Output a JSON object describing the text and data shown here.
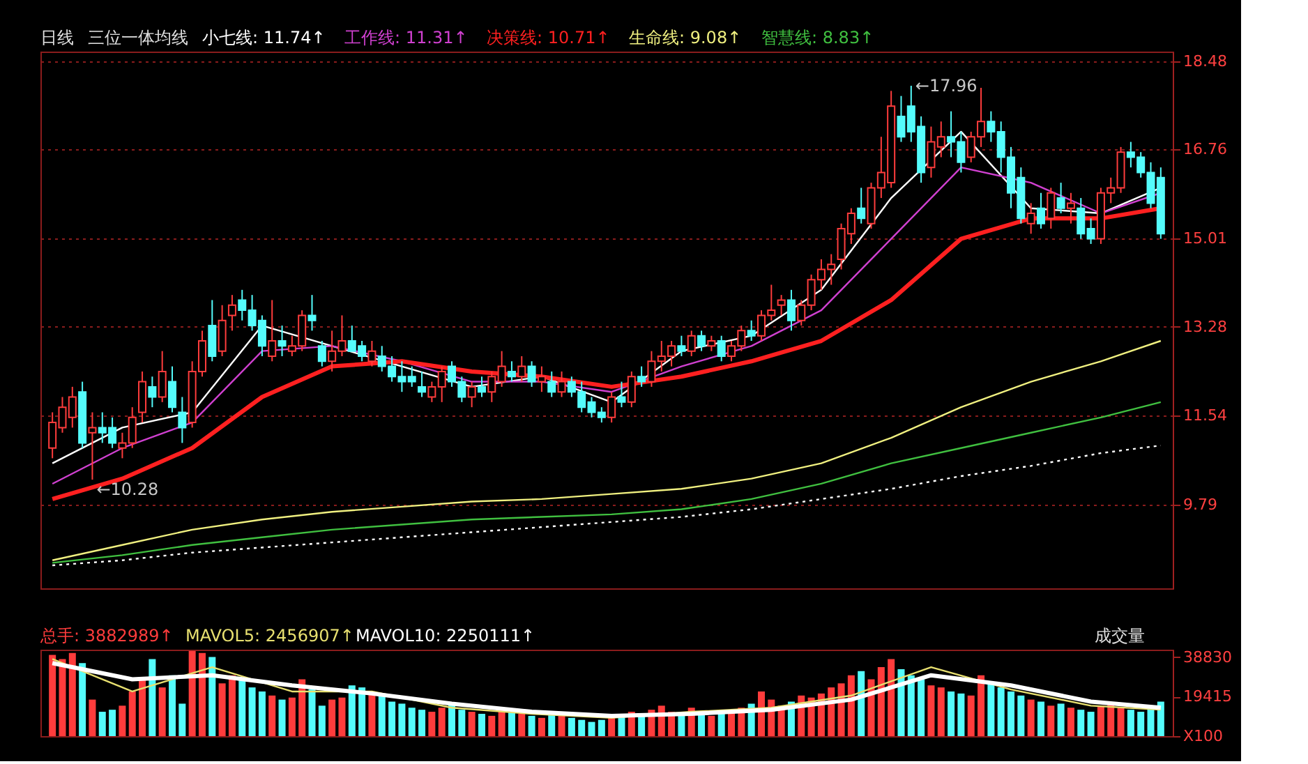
{
  "chart_data": [
    {
      "type": "candlestick",
      "title": "日线",
      "subtitle": "三位一体均线",
      "categories": [
        null,
        null,
        null,
        null,
        null,
        null,
        null,
        null,
        null,
        null,
        null,
        null,
        null,
        null,
        null,
        null,
        null,
        null,
        null,
        null,
        null,
        null,
        null,
        null,
        null,
        null,
        null,
        null,
        null,
        null,
        null,
        null,
        null,
        null,
        null,
        null,
        null,
        null,
        null,
        null,
        null,
        null,
        null,
        null,
        null,
        null,
        null,
        null,
        null,
        null,
        null,
        null,
        null,
        null,
        null,
        null,
        null,
        null,
        null,
        null,
        null,
        null,
        null,
        null,
        null,
        null,
        null,
        null,
        null,
        null,
        null,
        null,
        null,
        null,
        null,
        null,
        null,
        null,
        null,
        null,
        null,
        null,
        null,
        null,
        null,
        null,
        null,
        null,
        null,
        null,
        null,
        null,
        null,
        null,
        null,
        null,
        null,
        null,
        null,
        null,
        null,
        null,
        null,
        null,
        null,
        null,
        null,
        null,
        null,
        null,
        null,
        null
      ],
      "ohlc": [
        [
          10.9,
          11.6,
          10.7,
          11.4
        ],
        [
          11.3,
          11.9,
          11.2,
          11.7
        ],
        [
          11.5,
          12.1,
          11.3,
          11.9
        ],
        [
          12.0,
          12.2,
          10.9,
          11.0
        ],
        [
          11.2,
          11.6,
          10.28,
          11.3
        ],
        [
          11.3,
          11.6,
          11.0,
          11.2
        ],
        [
          11.3,
          11.5,
          10.9,
          11.0
        ],
        [
          10.9,
          11.2,
          10.7,
          11.0
        ],
        [
          11.0,
          11.7,
          10.9,
          11.5
        ],
        [
          11.6,
          12.4,
          11.4,
          12.2
        ],
        [
          12.1,
          12.3,
          11.7,
          11.9
        ],
        [
          11.9,
          12.8,
          11.8,
          12.4
        ],
        [
          12.2,
          12.5,
          11.6,
          11.7
        ],
        [
          11.6,
          11.9,
          11.0,
          11.3
        ],
        [
          11.4,
          12.6,
          11.3,
          12.4
        ],
        [
          12.4,
          13.2,
          12.3,
          13.0
        ],
        [
          13.3,
          13.8,
          12.6,
          12.7
        ],
        [
          12.8,
          13.7,
          12.7,
          13.4
        ],
        [
          13.5,
          13.9,
          13.2,
          13.7
        ],
        [
          13.8,
          14.0,
          13.4,
          13.6
        ],
        [
          13.6,
          13.9,
          13.2,
          13.3
        ],
        [
          13.4,
          13.5,
          12.7,
          12.9
        ],
        [
          12.7,
          13.8,
          12.6,
          13.0
        ],
        [
          13.0,
          13.3,
          12.7,
          12.9
        ],
        [
          12.8,
          13.1,
          12.7,
          12.9
        ],
        [
          12.9,
          13.6,
          12.8,
          13.5
        ],
        [
          13.5,
          13.9,
          13.2,
          13.4
        ],
        [
          12.9,
          13.0,
          12.5,
          12.6
        ],
        [
          12.6,
          13.2,
          12.4,
          12.8
        ],
        [
          12.8,
          13.5,
          12.7,
          13.0
        ],
        [
          13.0,
          13.3,
          12.8,
          12.8
        ],
        [
          12.9,
          13.0,
          12.6,
          12.7
        ],
        [
          12.6,
          13.0,
          12.5,
          12.8
        ],
        [
          12.7,
          12.9,
          12.4,
          12.5
        ],
        [
          12.5,
          12.7,
          12.2,
          12.3
        ],
        [
          12.3,
          12.6,
          12.0,
          12.2
        ],
        [
          12.3,
          12.5,
          12.1,
          12.2
        ],
        [
          12.1,
          12.4,
          11.9,
          12.0
        ],
        [
          11.9,
          12.2,
          11.8,
          12.1
        ],
        [
          12.1,
          12.5,
          11.8,
          12.4
        ],
        [
          12.5,
          12.6,
          12.1,
          12.2
        ],
        [
          12.2,
          12.3,
          11.8,
          11.9
        ],
        [
          11.9,
          12.2,
          11.7,
          12.1
        ],
        [
          12.1,
          12.3,
          11.9,
          12.0
        ],
        [
          12.0,
          12.4,
          11.8,
          12.3
        ],
        [
          12.2,
          12.8,
          12.1,
          12.5
        ],
        [
          12.4,
          12.6,
          12.2,
          12.3
        ],
        [
          12.3,
          12.7,
          12.2,
          12.5
        ],
        [
          12.5,
          12.6,
          12.1,
          12.2
        ],
        [
          12.2,
          12.5,
          12.0,
          12.3
        ],
        [
          12.2,
          12.4,
          11.9,
          12.0
        ],
        [
          12.0,
          12.4,
          11.9,
          12.2
        ],
        [
          12.2,
          12.3,
          11.9,
          12.0
        ],
        [
          12.0,
          12.2,
          11.6,
          11.7
        ],
        [
          11.8,
          11.9,
          11.5,
          11.6
        ],
        [
          11.6,
          11.7,
          11.4,
          11.5
        ],
        [
          11.5,
          12.0,
          11.4,
          11.9
        ],
        [
          11.9,
          12.2,
          11.7,
          11.8
        ],
        [
          11.8,
          12.4,
          11.7,
          12.3
        ],
        [
          12.3,
          12.5,
          12.1,
          12.2
        ],
        [
          12.2,
          12.8,
          12.1,
          12.6
        ],
        [
          12.6,
          13.0,
          12.4,
          12.7
        ],
        [
          12.7,
          13.0,
          12.5,
          12.9
        ],
        [
          12.9,
          13.1,
          12.7,
          12.8
        ],
        [
          12.8,
          13.2,
          12.7,
          13.1
        ],
        [
          13.1,
          13.2,
          12.8,
          12.9
        ],
        [
          12.9,
          13.1,
          12.8,
          13.0
        ],
        [
          13.0,
          13.1,
          12.6,
          12.7
        ],
        [
          12.7,
          13.0,
          12.6,
          12.9
        ],
        [
          12.9,
          13.3,
          12.8,
          13.2
        ],
        [
          13.2,
          13.4,
          13.0,
          13.1
        ],
        [
          13.1,
          13.6,
          13.0,
          13.5
        ],
        [
          13.5,
          14.1,
          13.4,
          13.6
        ],
        [
          13.7,
          13.9,
          13.5,
          13.8
        ],
        [
          13.8,
          14.0,
          13.2,
          13.4
        ],
        [
          13.4,
          13.8,
          13.3,
          13.7
        ],
        [
          13.7,
          14.3,
          13.6,
          14.2
        ],
        [
          14.2,
          14.6,
          14.0,
          14.4
        ],
        [
          14.4,
          14.7,
          14.1,
          14.5
        ],
        [
          14.6,
          15.3,
          14.4,
          15.2
        ],
        [
          15.1,
          15.6,
          14.9,
          15.5
        ],
        [
          15.6,
          16.0,
          15.3,
          15.4
        ],
        [
          15.3,
          16.1,
          15.2,
          16.0
        ],
        [
          16.0,
          17.0,
          15.8,
          16.3
        ],
        [
          16.1,
          17.9,
          16.0,
          17.6
        ],
        [
          17.4,
          17.8,
          16.9,
          17.0
        ],
        [
          17.6,
          18.0,
          16.9,
          17.1
        ],
        [
          17.2,
          17.4,
          16.1,
          16.3
        ],
        [
          16.4,
          17.2,
          16.2,
          16.9
        ],
        [
          16.8,
          17.3,
          16.6,
          17.0
        ],
        [
          17.0,
          17.5,
          16.6,
          16.9
        ],
        [
          16.9,
          17.1,
          16.3,
          16.5
        ],
        [
          16.6,
          17.1,
          16.5,
          17.0
        ],
        [
          17.0,
          17.96,
          16.8,
          17.3
        ],
        [
          17.3,
          17.5,
          16.9,
          17.1
        ],
        [
          17.1,
          17.3,
          16.3,
          16.6
        ],
        [
          16.6,
          16.8,
          15.6,
          15.9
        ],
        [
          16.2,
          16.4,
          15.3,
          15.4
        ],
        [
          15.3,
          15.7,
          15.1,
          15.5
        ],
        [
          15.6,
          15.9,
          15.2,
          15.3
        ],
        [
          15.4,
          16.0,
          15.2,
          15.9
        ],
        [
          15.8,
          16.1,
          15.5,
          15.6
        ],
        [
          15.6,
          15.9,
          15.3,
          15.7
        ],
        [
          15.6,
          15.8,
          15.0,
          15.1
        ],
        [
          15.2,
          15.4,
          14.9,
          15.0
        ],
        [
          15.0,
          16.0,
          14.9,
          15.9
        ],
        [
          15.9,
          16.2,
          15.7,
          16.0
        ],
        [
          16.0,
          16.8,
          15.9,
          16.7
        ],
        [
          16.7,
          16.9,
          16.4,
          16.6
        ],
        [
          16.6,
          16.7,
          16.2,
          16.3
        ],
        [
          16.3,
          16.5,
          15.6,
          15.7
        ],
        [
          16.2,
          16.4,
          15.0,
          15.1
        ]
      ],
      "colors": [
        "#ff3c3c",
        "#ff3c3c",
        "#ff3c3c",
        "#54fcfc",
        "#ff3c3c",
        "#54fcfc",
        "#54fcfc",
        "#ff3c3c",
        "#ff3c3c",
        "#ff3c3c",
        "#54fcfc",
        "#ff3c3c",
        "#54fcfc",
        "#54fcfc",
        "#ff3c3c",
        "#ff3c3c",
        "#54fcfc",
        "#ff3c3c",
        "#ff3c3c",
        "#54fcfc",
        "#54fcfc",
        "#54fcfc",
        "#ff3c3c",
        "#54fcfc",
        "#ff3c3c",
        "#ff3c3c",
        "#54fcfc",
        "#54fcfc",
        "#ff3c3c",
        "#ff3c3c",
        "#54fcfc",
        "#54fcfc",
        "#ff3c3c",
        "#54fcfc",
        "#54fcfc",
        "#54fcfc",
        "#54fcfc",
        "#54fcfc",
        "#ff3c3c",
        "#ff3c3c",
        "#54fcfc",
        "#54fcfc",
        "#ff3c3c",
        "#54fcfc",
        "#ff3c3c",
        "#ff3c3c",
        "#54fcfc",
        "#ff3c3c",
        "#54fcfc",
        "#ff3c3c",
        "#54fcfc",
        "#ff3c3c",
        "#54fcfc",
        "#54fcfc",
        "#54fcfc",
        "#54fcfc",
        "#ff3c3c",
        "#54fcfc",
        "#ff3c3c",
        "#54fcfc",
        "#ff3c3c",
        "#ff3c3c",
        "#ff3c3c",
        "#54fcfc",
        "#ff3c3c",
        "#54fcfc",
        "#ff3c3c",
        "#54fcfc",
        "#ff3c3c",
        "#ff3c3c",
        "#54fcfc",
        "#ff3c3c",
        "#ff3c3c",
        "#ff3c3c",
        "#54fcfc",
        "#ff3c3c",
        "#ff3c3c",
        "#ff3c3c",
        "#ff3c3c",
        "#ff3c3c",
        "#ff3c3c",
        "#54fcfc",
        "#ff3c3c",
        "#ff3c3c",
        "#ff3c3c",
        "#54fcfc",
        "#54fcfc",
        "#54fcfc",
        "#ff3c3c",
        "#ff3c3c",
        "#54fcfc",
        "#54fcfc",
        "#ff3c3c",
        "#ff3c3c",
        "#54fcfc",
        "#54fcfc",
        "#54fcfc",
        "#54fcfc",
        "#ff3c3c",
        "#54fcfc",
        "#ff3c3c",
        "#54fcfc",
        "#ff3c3c",
        "#54fcfc",
        "#54fcfc",
        "#ff3c3c",
        "#ff3c3c",
        "#ff3c3c",
        "#54fcfc",
        "#54fcfc",
        "#54fcfc",
        "#54fcfc"
      ],
      "series": [
        {
          "name": "小七线: 11.74↑",
          "type": "line",
          "color": "#ffffff",
          "values": [
            10.6,
            null,
            null,
            null,
            null,
            null,
            null,
            11.3,
            null,
            null,
            null,
            null,
            null,
            null,
            11.6,
            null,
            null,
            null,
            null,
            null,
            null,
            13.3,
            null,
            null,
            null,
            null,
            null,
            null,
            12.9,
            null,
            null,
            null,
            null,
            null,
            null,
            12.5,
            null,
            null,
            null,
            null,
            null,
            null,
            12.1,
            null,
            null,
            null,
            null,
            null,
            null,
            12.3,
            null,
            null,
            null,
            null,
            null,
            null,
            11.8,
            null,
            null,
            null,
            null,
            null,
            null,
            12.8,
            null,
            null,
            null,
            null,
            null,
            null,
            13.1,
            null,
            null,
            null,
            null,
            null,
            null,
            14.0,
            null,
            null,
            null,
            null,
            null,
            null,
            15.8,
            null,
            null,
            null,
            null,
            null,
            null,
            17.1,
            null,
            null,
            null,
            null,
            null,
            null,
            15.6,
            null,
            null,
            null,
            null,
            null,
            null,
            15.5,
            null,
            null,
            null,
            null,
            null,
            16.0
          ]
        },
        {
          "name": "工作线: 11.31↑",
          "type": "line",
          "color": "#d040d0",
          "values": [
            10.2,
            null,
            null,
            null,
            null,
            null,
            null,
            10.9,
            null,
            null,
            null,
            null,
            null,
            null,
            11.4,
            null,
            null,
            null,
            null,
            null,
            null,
            12.8,
            null,
            null,
            null,
            null,
            null,
            null,
            12.9,
            null,
            null,
            null,
            null,
            null,
            null,
            12.6,
            null,
            null,
            null,
            null,
            null,
            null,
            12.2,
            null,
            null,
            null,
            null,
            null,
            null,
            12.2,
            null,
            null,
            null,
            null,
            null,
            null,
            12.0,
            null,
            null,
            null,
            null,
            null,
            null,
            12.5,
            null,
            null,
            null,
            null,
            null,
            null,
            12.9,
            null,
            null,
            null,
            null,
            null,
            null,
            13.6,
            null,
            null,
            null,
            null,
            null,
            null,
            15.0,
            null,
            null,
            null,
            null,
            null,
            null,
            16.4,
            null,
            null,
            null,
            null,
            null,
            null,
            16.1,
            null,
            null,
            null,
            null,
            null,
            null,
            15.5,
            null,
            null,
            null,
            null,
            null,
            15.9
          ]
        },
        {
          "name": "决策线: 10.71↑",
          "type": "line",
          "color": "#ff2020",
          "values": [
            9.9,
            null,
            null,
            null,
            null,
            null,
            null,
            10.3,
            null,
            null,
            null,
            null,
            null,
            null,
            10.9,
            null,
            null,
            null,
            null,
            null,
            null,
            11.9,
            null,
            null,
            null,
            null,
            null,
            null,
            12.5,
            null,
            null,
            null,
            null,
            null,
            null,
            12.6,
            null,
            null,
            null,
            null,
            null,
            null,
            12.4,
            null,
            null,
            null,
            null,
            null,
            null,
            12.3,
            null,
            null,
            null,
            null,
            null,
            null,
            12.1,
            null,
            null,
            null,
            null,
            null,
            null,
            12.3,
            null,
            null,
            null,
            null,
            null,
            null,
            12.6,
            null,
            null,
            null,
            null,
            null,
            null,
            13.0,
            null,
            null,
            null,
            null,
            null,
            null,
            13.8,
            null,
            null,
            null,
            null,
            null,
            null,
            15.0,
            null,
            null,
            null,
            null,
            null,
            null,
            15.4,
            null,
            null,
            null,
            null,
            null,
            null,
            15.4,
            null,
            null,
            null,
            null,
            null,
            15.6
          ]
        },
        {
          "name": "生命线: 9.08↑",
          "type": "line",
          "color": "#f0f080",
          "values": [
            8.7,
            null,
            null,
            null,
            null,
            null,
            null,
            9.0,
            null,
            null,
            null,
            null,
            null,
            null,
            9.3,
            null,
            null,
            null,
            null,
            null,
            null,
            9.5,
            null,
            null,
            null,
            null,
            null,
            null,
            9.65,
            null,
            null,
            null,
            null,
            null,
            null,
            9.75,
            null,
            null,
            null,
            null,
            null,
            null,
            9.85,
            null,
            null,
            null,
            null,
            null,
            null,
            9.9,
            null,
            null,
            null,
            null,
            null,
            null,
            10.0,
            null,
            null,
            null,
            null,
            null,
            null,
            10.1,
            null,
            null,
            null,
            null,
            null,
            null,
            10.3,
            null,
            null,
            null,
            null,
            null,
            null,
            10.6,
            null,
            null,
            null,
            null,
            null,
            null,
            11.1,
            null,
            null,
            null,
            null,
            null,
            null,
            11.7,
            null,
            null,
            null,
            null,
            null,
            null,
            12.2,
            null,
            null,
            null,
            null,
            null,
            null,
            12.6,
            null,
            null,
            null,
            null,
            null,
            13.0
          ]
        },
        {
          "name": "智慧线: 8.83↑",
          "type": "line",
          "color": "#40c040",
          "values": [
            8.65,
            null,
            null,
            null,
            null,
            null,
            null,
            8.8,
            null,
            null,
            null,
            null,
            null,
            null,
            9.0,
            null,
            null,
            null,
            null,
            null,
            null,
            9.15,
            null,
            null,
            null,
            null,
            null,
            null,
            9.3,
            null,
            null,
            null,
            null,
            null,
            null,
            9.4,
            null,
            null,
            null,
            null,
            null,
            null,
            9.5,
            null,
            null,
            null,
            null,
            null,
            null,
            9.55,
            null,
            null,
            null,
            null,
            null,
            null,
            9.6,
            null,
            null,
            null,
            null,
            null,
            null,
            9.7,
            null,
            null,
            null,
            null,
            null,
            null,
            9.9,
            null,
            null,
            null,
            null,
            null,
            null,
            10.2,
            null,
            null,
            null,
            null,
            null,
            null,
            10.6,
            null,
            null,
            null,
            null,
            null,
            null,
            10.9,
            null,
            null,
            null,
            null,
            null,
            null,
            11.2,
            null,
            null,
            null,
            null,
            null,
            null,
            11.5,
            null,
            null,
            null,
            null,
            null,
            11.8
          ]
        },
        {
          "type": "line",
          "color": "#ffffff",
          "line_style": "dotted",
          "values": [
            8.6,
            null,
            null,
            null,
            null,
            null,
            null,
            8.7,
            null,
            null,
            null,
            null,
            null,
            null,
            8.85,
            null,
            null,
            null,
            null,
            null,
            null,
            8.95,
            null,
            null,
            null,
            null,
            null,
            null,
            9.05,
            null,
            null,
            null,
            null,
            null,
            null,
            9.15,
            null,
            null,
            null,
            null,
            null,
            null,
            9.25,
            null,
            null,
            null,
            null,
            null,
            null,
            9.35,
            null,
            null,
            null,
            null,
            null,
            null,
            9.45,
            null,
            null,
            null,
            null,
            null,
            null,
            9.55,
            null,
            null,
            null,
            null,
            null,
            null,
            9.7,
            null,
            null,
            null,
            null,
            null,
            null,
            9.9,
            null,
            null,
            null,
            null,
            null,
            null,
            10.1,
            null,
            null,
            null,
            null,
            null,
            null,
            10.35,
            null,
            null,
            null,
            null,
            null,
            null,
            10.55,
            null,
            null,
            null,
            null,
            null,
            null,
            10.8,
            null,
            null,
            null,
            null,
            null,
            10.95
          ]
        }
      ],
      "ylim": [
        8.15,
        18.67
      ],
      "yticks": [
        9.79,
        11.54,
        13.28,
        15.01,
        16.76,
        18.48
      ],
      "grid": "y",
      "tick_labels": "y",
      "legend": "top",
      "annotations": [
        "←17.96",
        "←10.28"
      ]
    },
    {
      "type": "bar",
      "ylabel": "成交量",
      "categories": [
        null,
        null,
        null,
        null,
        null,
        null,
        null,
        null,
        null,
        null,
        null,
        null,
        null,
        null,
        null,
        null,
        null,
        null,
        null,
        null,
        null,
        null,
        null,
        null,
        null,
        null,
        null,
        null,
        null,
        null,
        null,
        null,
        null,
        null,
        null,
        null,
        null,
        null,
        null,
        null,
        null,
        null,
        null,
        null,
        null,
        null,
        null,
        null,
        null,
        null,
        null,
        null,
        null,
        null,
        null,
        null,
        null,
        null,
        null,
        null,
        null,
        null,
        null,
        null,
        null,
        null,
        null,
        null,
        null,
        null,
        null,
        null,
        null,
        null,
        null,
        null,
        null,
        null,
        null,
        null,
        null,
        null,
        null,
        null,
        null,
        null,
        null,
        null,
        null,
        null,
        null,
        null,
        null,
        null,
        null,
        null,
        null,
        null,
        null,
        null,
        null,
        null,
        null,
        null,
        null,
        null,
        null,
        null,
        null,
        null,
        null,
        null
      ],
      "series": [
        {
          "name": "总手: 3882989↑",
          "color": "#ff3c3c",
          "values": [
            40000,
            38000,
            41000,
            36000,
            18000,
            12000,
            13000,
            15000,
            22000,
            28000,
            38000,
            24000,
            30000,
            16000,
            42000,
            41000,
            39000,
            26000,
            30000,
            28000,
            24000,
            22000,
            20000,
            18000,
            19000,
            28000,
            23000,
            15000,
            18000,
            19000,
            25000,
            24000,
            22000,
            20000,
            17000,
            16000,
            14000,
            13000,
            12000,
            14000,
            16000,
            13000,
            12000,
            11000,
            10000,
            13000,
            12000,
            11000,
            10000,
            9000,
            12000,
            11000,
            9000,
            8000,
            7000,
            8000,
            9000,
            10000,
            12000,
            11000,
            13000,
            15000,
            12000,
            11000,
            14000,
            12000,
            10000,
            11000,
            12000,
            14000,
            16000,
            22000,
            18000,
            15000,
            17000,
            20000,
            19000,
            21000,
            24000,
            26000,
            30000,
            32000,
            28000,
            34000,
            38000,
            33000,
            30000,
            28000,
            25000,
            24000,
            22000,
            21000,
            20000,
            30000,
            26000,
            24000,
            22000,
            20000,
            18000,
            17000,
            15000,
            16000,
            14000,
            13000,
            12000,
            15000,
            16000,
            14000,
            13000,
            12000,
            14000,
            17000
          ],
          "colors": [
            "#ff3c3c",
            "#ff3c3c",
            "#ff3c3c",
            "#54fcfc",
            "#ff3c3c",
            "#54fcfc",
            "#54fcfc",
            "#ff3c3c",
            "#ff3c3c",
            "#ff3c3c",
            "#54fcfc",
            "#ff3c3c",
            "#54fcfc",
            "#54fcfc",
            "#ff3c3c",
            "#ff3c3c",
            "#54fcfc",
            "#ff3c3c",
            "#ff3c3c",
            "#54fcfc",
            "#54fcfc",
            "#54fcfc",
            "#ff3c3c",
            "#54fcfc",
            "#ff3c3c",
            "#ff3c3c",
            "#54fcfc",
            "#54fcfc",
            "#ff3c3c",
            "#ff3c3c",
            "#54fcfc",
            "#54fcfc",
            "#ff3c3c",
            "#54fcfc",
            "#54fcfc",
            "#54fcfc",
            "#54fcfc",
            "#54fcfc",
            "#ff3c3c",
            "#ff3c3c",
            "#54fcfc",
            "#54fcfc",
            "#ff3c3c",
            "#54fcfc",
            "#ff3c3c",
            "#ff3c3c",
            "#54fcfc",
            "#ff3c3c",
            "#54fcfc",
            "#ff3c3c",
            "#54fcfc",
            "#ff3c3c",
            "#54fcfc",
            "#54fcfc",
            "#54fcfc",
            "#54fcfc",
            "#ff3c3c",
            "#54fcfc",
            "#ff3c3c",
            "#54fcfc",
            "#ff3c3c",
            "#ff3c3c",
            "#ff3c3c",
            "#54fcfc",
            "#ff3c3c",
            "#54fcfc",
            "#ff3c3c",
            "#54fcfc",
            "#ff3c3c",
            "#ff3c3c",
            "#54fcfc",
            "#ff3c3c",
            "#ff3c3c",
            "#ff3c3c",
            "#54fcfc",
            "#ff3c3c",
            "#ff3c3c",
            "#ff3c3c",
            "#ff3c3c",
            "#ff3c3c",
            "#ff3c3c",
            "#54fcfc",
            "#ff3c3c",
            "#ff3c3c",
            "#ff3c3c",
            "#54fcfc",
            "#54fcfc",
            "#54fcfc",
            "#ff3c3c",
            "#ff3c3c",
            "#54fcfc",
            "#54fcfc",
            "#ff3c3c",
            "#ff3c3c",
            "#54fcfc",
            "#54fcfc",
            "#54fcfc",
            "#54fcfc",
            "#ff3c3c",
            "#54fcfc",
            "#ff3c3c",
            "#54fcfc",
            "#ff3c3c",
            "#54fcfc",
            "#54fcfc",
            "#ff3c3c",
            "#ff3c3c",
            "#ff3c3c",
            "#54fcfc",
            "#54fcfc",
            "#54fcfc",
            "#54fcfc"
          ]
        },
        {
          "name": "MAVOL5: 2456907↑",
          "type": "line",
          "color": "#e8e070",
          "values": [
            38000,
            null,
            null,
            null,
            null,
            null,
            null,
            null,
            22000,
            null,
            null,
            null,
            null,
            null,
            null,
            null,
            34000,
            null,
            null,
            null,
            null,
            null,
            null,
            null,
            22000,
            null,
            null,
            null,
            null,
            null,
            null,
            null,
            22000,
            null,
            null,
            null,
            null,
            null,
            null,
            null,
            14000,
            null,
            null,
            null,
            null,
            null,
            null,
            null,
            11000,
            null,
            null,
            null,
            null,
            null,
            null,
            null,
            9000,
            null,
            null,
            null,
            null,
            null,
            null,
            null,
            12000,
            null,
            null,
            null,
            null,
            null,
            null,
            null,
            14000,
            null,
            null,
            null,
            null,
            null,
            null,
            null,
            20000,
            null,
            null,
            null,
            null,
            null,
            null,
            null,
            34000,
            null,
            null,
            null,
            null,
            null,
            null,
            null,
            23000,
            null,
            null,
            null,
            null,
            null,
            null,
            null,
            15000,
            null,
            null,
            null,
            null,
            null,
            null,
            13000
          ]
        },
        {
          "name": "MAVOL10: 2250111↑",
          "type": "line",
          "color": "#ffffff",
          "values": [
            36000,
            null,
            null,
            null,
            null,
            null,
            null,
            null,
            28000,
            null,
            null,
            null,
            null,
            null,
            null,
            null,
            30000,
            null,
            null,
            null,
            null,
            null,
            null,
            null,
            25000,
            null,
            null,
            null,
            null,
            null,
            null,
            null,
            21000,
            null,
            null,
            null,
            null,
            null,
            null,
            null,
            16000,
            null,
            null,
            null,
            null,
            null,
            null,
            null,
            12000,
            null,
            null,
            null,
            null,
            null,
            null,
            null,
            10000,
            null,
            null,
            null,
            null,
            null,
            null,
            null,
            11000,
            null,
            null,
            null,
            null,
            null,
            null,
            null,
            13000,
            null,
            null,
            null,
            null,
            null,
            null,
            null,
            18000,
            null,
            null,
            null,
            null,
            null,
            null,
            null,
            30000,
            null,
            null,
            null,
            null,
            null,
            null,
            null,
            25000,
            null,
            null,
            null,
            null,
            null,
            null,
            null,
            17000,
            null,
            null,
            null,
            null,
            null,
            null,
            14000
          ]
        }
      ],
      "ylim": [
        0,
        42600
      ],
      "yticks": [
        {
          "value": 0,
          "label": "X100"
        },
        19415,
        38830
      ],
      "tick_labels": "y",
      "legend": "top"
    }
  ]
}
